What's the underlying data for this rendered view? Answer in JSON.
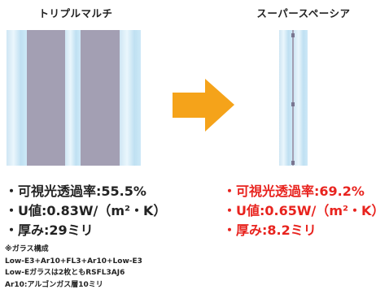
{
  "left_panel": {
    "title": "トリプルマルチ",
    "specs": [
      "・可視光透過率:55.5%",
      "・U値:0.83W/（m²・K）",
      "・厚み:29ミリ"
    ],
    "notes": [
      "※ガラス構成",
      "Low-E3+Ar10+FL3+Ar10+Low-E3",
      "Low-Eガラスは2枚ともRSFL3AJ6",
      "Ar10:アルゴンガス層10ミリ"
    ]
  },
  "right_panel": {
    "title": "スーパースペーシア",
    "specs": [
      "・可視光透過率:69.2%",
      "・U値:0.65W/（m²・K）",
      "・厚み:8.2ミリ"
    ]
  },
  "colors": {
    "arrow": "#f5a31a",
    "highlight_text": "#e8231e",
    "gas_layer": "#a39fb3",
    "glass": "#cfe6f4"
  }
}
